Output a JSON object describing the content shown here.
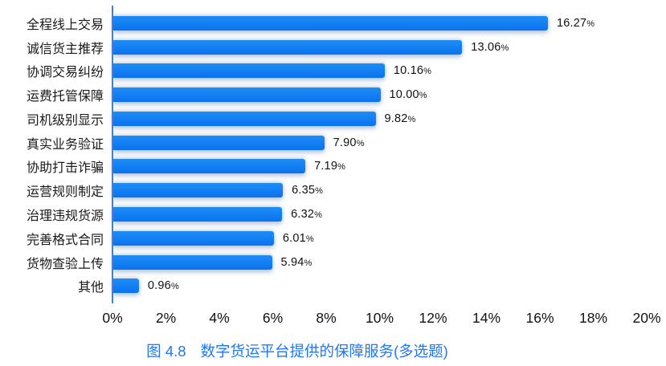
{
  "chart_data": {
    "type": "bar",
    "orientation": "horizontal",
    "categories": [
      "全程线上交易",
      "诚信货主推荐",
      "协调交易纠纷",
      "运费托管保障",
      "司机级别显示",
      "真实业务验证",
      "协助打击诈骗",
      "运营规则制定",
      "治理违规货源",
      "完善格式合同",
      "货物查验上传",
      "其他"
    ],
    "values": [
      16.27,
      13.06,
      10.16,
      10.0,
      9.82,
      7.9,
      7.19,
      6.35,
      6.32,
      6.01,
      5.94,
      0.96
    ],
    "value_labels": [
      "16.27",
      "13.06",
      "10.16",
      "10.00",
      "9.82",
      "7.90",
      "7.19",
      "6.35",
      "6.32",
      "6.01",
      "5.94",
      "0.96"
    ],
    "value_suffix": "%",
    "x_ticks": [
      "0%",
      "2%",
      "4%",
      "6%",
      "8%",
      "10%",
      "12%",
      "14%",
      "16%",
      "18%",
      "20%"
    ],
    "xlim": [
      0,
      20
    ],
    "grid": "off",
    "legend": "none",
    "caption_prefix": "图 4.8",
    "caption_text": "数字货运平台提供的保障服务(多选题)",
    "colors": {
      "bar_top": "#1E8DF6",
      "bar_bottom": "#0A73EE",
      "axis_line": "#3A80E6",
      "caption": "#2176F3",
      "text": "#111111"
    }
  }
}
